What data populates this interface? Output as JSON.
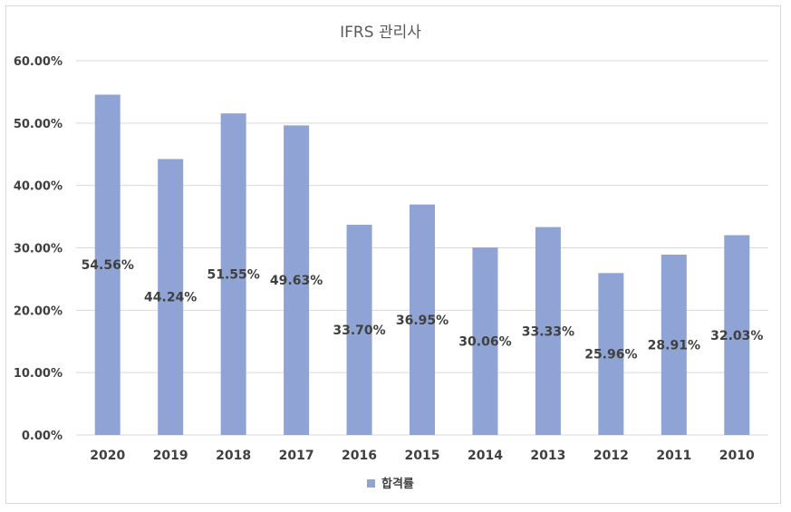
{
  "chart_data": {
    "type": "bar",
    "title": "IFRS 관리사",
    "categories": [
      "2020",
      "2019",
      "2018",
      "2017",
      "2016",
      "2015",
      "2014",
      "2013",
      "2012",
      "2011",
      "2010"
    ],
    "series": [
      {
        "name": "합격률",
        "values": [
          54.56,
          44.24,
          51.55,
          49.63,
          33.7,
          36.95,
          30.06,
          33.33,
          25.96,
          28.91,
          32.03
        ],
        "labels": [
          "54.56%",
          "44.24%",
          "51.55%",
          "49.63%",
          "33.70%",
          "36.95%",
          "30.06%",
          "33.33%",
          "25.96%",
          "28.91%",
          "32.03%"
        ]
      }
    ],
    "ylim": [
      0,
      60
    ],
    "yticks": [
      "0.00%",
      "10.00%",
      "20.00%",
      "30.00%",
      "40.00%",
      "50.00%",
      "60.00%"
    ],
    "grid": true,
    "legend": "bottom",
    "bar_color": "#8fa3d4",
    "grid_color": "#d9d9d9"
  }
}
